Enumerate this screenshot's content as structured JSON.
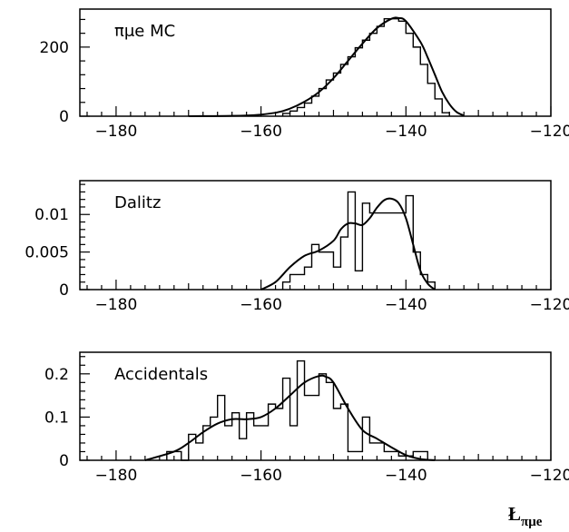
{
  "figure": {
    "xlabel_main": "Ł",
    "xlabel_sub": "πμe"
  },
  "chart_data": [
    {
      "type": "histogram",
      "label": "πμe MC",
      "xlim": [
        -185,
        -120
      ],
      "ylim": [
        0,
        310
      ],
      "xticks": [
        -180,
        -160,
        -140,
        -120
      ],
      "xtick_labels": [
        "−180",
        "−160",
        "−140",
        "−120"
      ],
      "yticks": [
        0,
        200
      ],
      "ytick_labels": [
        "0",
        "200"
      ],
      "hist": {
        "edges": [
          -157,
          -156,
          -155,
          -154,
          -153,
          -152,
          -151,
          -150,
          -149,
          -148,
          -147,
          -146,
          -145,
          -144,
          -143,
          -142,
          -141,
          -140,
          -139,
          -138,
          -137,
          -136,
          -135,
          -134
        ],
        "values": [
          8,
          15,
          25,
          38,
          58,
          80,
          105,
          125,
          150,
          172,
          198,
          220,
          240,
          260,
          282,
          282,
          275,
          240,
          200,
          150,
          95,
          50,
          10
        ]
      },
      "fit": {
        "x": [
          -170,
          -162,
          -158,
          -156,
          -154,
          -152,
          -150,
          -148,
          -146,
          -144,
          -142,
          -141,
          -140,
          -138,
          -137,
          -136,
          -135,
          -134,
          -133,
          -132
        ],
        "y": [
          0,
          2,
          10,
          22,
          42,
          70,
          110,
          160,
          210,
          255,
          282,
          284,
          275,
          215,
          170,
          120,
          70,
          35,
          12,
          2
        ]
      }
    },
    {
      "type": "histogram",
      "label": "Dalitz",
      "xlim": [
        -185,
        -120
      ],
      "ylim": [
        0,
        0.0145
      ],
      "xticks": [
        -180,
        -160,
        -140,
        -120
      ],
      "xtick_labels": [
        "−180",
        "−160",
        "−140",
        "−120"
      ],
      "yticks": [
        0,
        0.005,
        0.01
      ],
      "ytick_labels": [
        "0",
        "0.005",
        "0.01"
      ],
      "hist": {
        "edges": [
          -157,
          -156,
          -155,
          -154,
          -153,
          -152,
          -151,
          -150,
          -149,
          -148,
          -147,
          -146,
          -145,
          -144,
          -143,
          -142,
          -141,
          -140,
          -139,
          -138,
          -137,
          -136
        ],
        "values": [
          0.001,
          0.002,
          0.002,
          0.003,
          0.006,
          0.005,
          0.005,
          0.003,
          0.007,
          0.013,
          0.0025,
          0.0115,
          0.0102,
          0.0102,
          0.0102,
          0.0102,
          0.0102,
          0.0125,
          0.005,
          0.002,
          0.001
        ]
      },
      "fit": {
        "x": [
          -160,
          -158,
          -156,
          -154,
          -152,
          -150,
          -149,
          -148,
          -147,
          -146,
          -145,
          -144,
          -143,
          -142,
          -141,
          -140,
          -139,
          -138,
          -137,
          -136
        ],
        "y": [
          0,
          0.001,
          0.003,
          0.0045,
          0.0052,
          0.0065,
          0.008,
          0.0088,
          0.0088,
          0.0086,
          0.0095,
          0.0109,
          0.0119,
          0.0121,
          0.0115,
          0.0095,
          0.006,
          0.0025,
          0.0008,
          0
        ]
      }
    },
    {
      "type": "histogram",
      "label": "Accidentals",
      "xlim": [
        -185,
        -120
      ],
      "ylim": [
        0,
        0.25
      ],
      "xticks": [
        -180,
        -160,
        -140,
        -120
      ],
      "xtick_labels": [
        "−180",
        "−160",
        "−140",
        "−120"
      ],
      "yticks": [
        0,
        0.1,
        0.2
      ],
      "ytick_labels": [
        "0",
        "0.1",
        "0.2"
      ],
      "hist": {
        "edges": [
          -173,
          -172,
          -171,
          -170,
          -169,
          -168,
          -167,
          -166,
          -165,
          -164,
          -163,
          -162,
          -161,
          -160,
          -159,
          -158,
          -157,
          -156,
          -155,
          -154,
          -153,
          -152,
          -151,
          -150,
          -149,
          -148,
          -147,
          -146,
          -145,
          -144,
          -143,
          -142,
          -141,
          -140,
          -139,
          -138,
          -137
        ],
        "values": [
          0.02,
          0.02,
          0,
          0.06,
          0.04,
          0.08,
          0.1,
          0.15,
          0.08,
          0.11,
          0.05,
          0.11,
          0.08,
          0.08,
          0.13,
          0.12,
          0.19,
          0.08,
          0.23,
          0.15,
          0.15,
          0.2,
          0.18,
          0.12,
          0.13,
          0.02,
          0.02,
          0.1,
          0.04,
          0.04,
          0.02,
          0.02,
          0.01,
          0.01,
          0.02,
          0.02
        ]
      },
      "fit": {
        "x": [
          -176,
          -172,
          -170,
          -168,
          -166,
          -164,
          -162,
          -160,
          -158,
          -156,
          -154,
          -152,
          -151,
          -150,
          -148,
          -146,
          -144,
          -142,
          -140,
          -138,
          -136
        ],
        "y": [
          0,
          0.02,
          0.04,
          0.065,
          0.085,
          0.095,
          0.095,
          0.1,
          0.12,
          0.15,
          0.18,
          0.195,
          0.193,
          0.18,
          0.12,
          0.07,
          0.05,
          0.03,
          0.012,
          0.003,
          0
        ]
      }
    }
  ]
}
